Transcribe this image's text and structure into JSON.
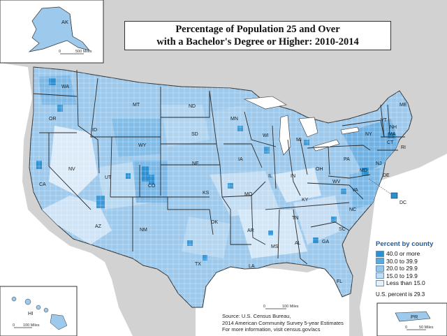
{
  "title": {
    "line1": "Percentage of Population 25 and Over",
    "line2": "with a Bachelor's Degree or Higher: 2010-2014"
  },
  "legend": {
    "title": "Percent by county",
    "items": [
      {
        "label": "40.0 or more",
        "color": "#2b8fd0"
      },
      {
        "label": "30.0 to 39.9",
        "color": "#5aaae0"
      },
      {
        "label": "20.0 to 29.9",
        "color": "#93c7ec"
      },
      {
        "label": "15.0 to 19.9",
        "color": "#c0ddf4"
      },
      {
        "label": "Less than 15.0",
        "color": "#e4f0fa"
      }
    ],
    "us_percent": "U.S. percent is 29.3"
  },
  "source": {
    "line1": "Source: U.S. Census Bureau,",
    "line2": "2014 American Community Survey 5-year Estimates",
    "line3": "For more information, visit census.gov/acs"
  },
  "scales": {
    "alaska": "500 Miles",
    "hawaii": "100 Miles",
    "mainland": "100 Miles",
    "puerto_rico": "50 Miles",
    "zero": "0"
  },
  "insets": {
    "alaska": "AK",
    "hawaii": "HI",
    "puerto_rico": "PR"
  },
  "states": {
    "WA": "WA",
    "OR": "OR",
    "CA": "CA",
    "ID": "ID",
    "NV": "NV",
    "MT": "MT",
    "WY": "WY",
    "UT": "UT",
    "AZ": "AZ",
    "CO": "CO",
    "NM": "NM",
    "ND": "ND",
    "SD": "SD",
    "NE": "NE",
    "KS": "KS",
    "OK": "OK",
    "TX": "TX",
    "MN": "MN",
    "IA": "IA",
    "MO": "MO",
    "AR": "AR",
    "LA": "LA",
    "WI": "WI",
    "IL": "IL",
    "MI": "MI",
    "IN": "IN",
    "OH": "OH",
    "KY": "KY",
    "TN": "TN",
    "MS": "MS",
    "AL": "AL",
    "GA": "GA",
    "FL": "FL",
    "SC": "SC",
    "NC": "NC",
    "VA": "VA",
    "WV": "WV",
    "PA": "PA",
    "NY": "NY",
    "VT": "VT",
    "NH": "NH",
    "ME": "ME",
    "MA": "MA",
    "CT": "CT",
    "RI": "RI",
    "NJ": "NJ",
    "DE": "DE",
    "MD": "MD",
    "DC": "DC"
  }
}
